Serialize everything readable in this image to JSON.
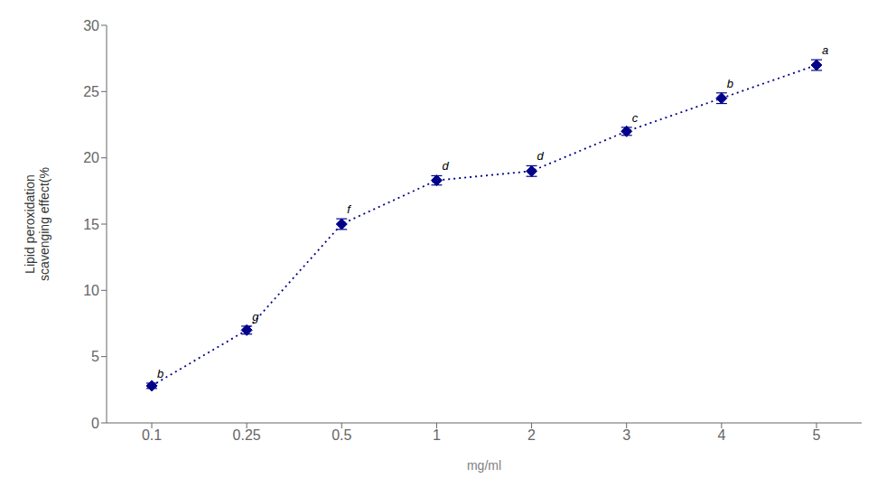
{
  "chart_data": {
    "type": "line",
    "x_label": "mg/ml",
    "y_label": "Lipid peroxidation\nscavenging effect(%",
    "categories": [
      "0.1",
      "0.25",
      "0.5",
      "1",
      "2",
      "3",
      "4",
      "5"
    ],
    "series": [
      {
        "values": [
          2.8,
          7.0,
          15.0,
          18.3,
          19.0,
          22.0,
          24.5,
          27.0
        ],
        "error": [
          0.2,
          0.3,
          0.4,
          0.35,
          0.4,
          0.3,
          0.4,
          0.4
        ],
        "point_labels": [
          "b",
          "g",
          "f",
          "d",
          "d",
          "c",
          "b",
          "a"
        ],
        "color": "#00008B",
        "marker": "diamond",
        "line_style": "dotted"
      }
    ],
    "ylim": [
      0,
      30
    ],
    "yticks": [
      0,
      5,
      10,
      15,
      20,
      25,
      30
    ],
    "grid": false
  }
}
